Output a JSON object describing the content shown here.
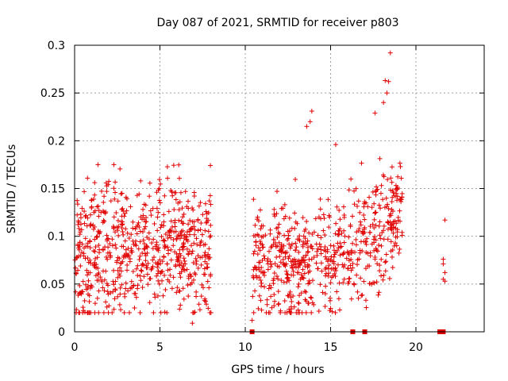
{
  "chart_data": {
    "type": "scatter",
    "title": "Day 087 of 2021, SRMTID for receiver p803",
    "xlabel": "GPS time / hours",
    "ylabel": "SRMTID / TECUs",
    "xlim": [
      0,
      24
    ],
    "ylim": [
      0,
      0.3
    ],
    "x_ticks": [
      0,
      5,
      10,
      15,
      20
    ],
    "x_tick_labels": [
      "0",
      "5",
      "10",
      "15",
      "20"
    ],
    "y_ticks": [
      0,
      0.05,
      0.1,
      0.15,
      0.2,
      0.25,
      0.3
    ],
    "y_tick_labels": [
      "0",
      "0.05",
      "0.1",
      "0.15",
      "0.2",
      "0.25",
      "0.3"
    ],
    "grid": true,
    "series_color": "#e00000",
    "marker": "plus",
    "segments": [
      {
        "x_start": 0.0,
        "x_end": 8.0,
        "y_center": 0.085,
        "y_spread": 0.035,
        "count": 700,
        "y_max": 0.175
      },
      {
        "x_start": 10.4,
        "x_end": 19.2,
        "y_center": 0.07,
        "y_spread": 0.03,
        "count": 650,
        "y_max": 0.29
      }
    ],
    "highlight_points": [
      {
        "x": 18.5,
        "y": 0.292
      },
      {
        "x": 18.2,
        "y": 0.263
      },
      {
        "x": 18.4,
        "y": 0.262
      },
      {
        "x": 18.3,
        "y": 0.25
      },
      {
        "x": 18.1,
        "y": 0.24
      },
      {
        "x": 17.6,
        "y": 0.229
      },
      {
        "x": 13.9,
        "y": 0.231
      },
      {
        "x": 13.8,
        "y": 0.22
      },
      {
        "x": 13.6,
        "y": 0.215
      },
      {
        "x": 15.3,
        "y": 0.196
      },
      {
        "x": 2.3,
        "y": 0.175
      },
      {
        "x": 21.7,
        "y": 0.117
      },
      {
        "x": 21.6,
        "y": 0.076
      },
      {
        "x": 21.6,
        "y": 0.071
      },
      {
        "x": 21.7,
        "y": 0.062
      },
      {
        "x": 21.6,
        "y": 0.055
      },
      {
        "x": 21.7,
        "y": 0.053
      },
      {
        "x": 6.9,
        "y": 0.009
      },
      {
        "x": 10.4,
        "y": 0.012
      }
    ],
    "zero_markers": [
      10.4,
      16.3,
      17.0,
      21.4,
      21.6
    ]
  }
}
